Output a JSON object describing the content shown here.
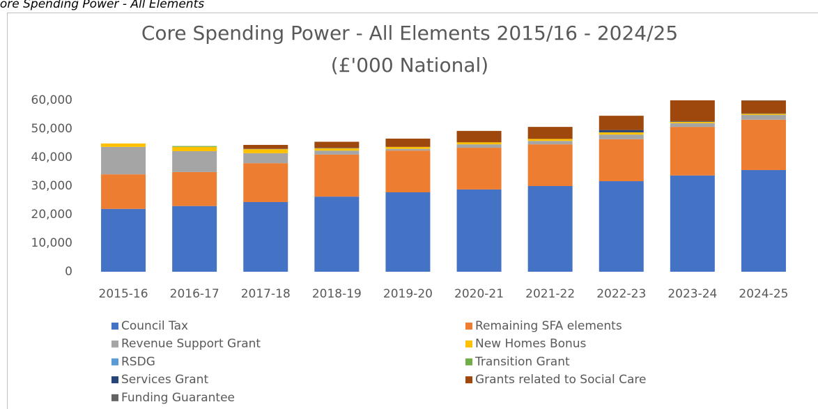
{
  "caption": "Core Spending Power - All Elements",
  "chart_data": {
    "type": "stacked_bar",
    "title": [
      "Core Spending Power - All Elements 2015/16 - 2024/25",
      "(£'000 National)"
    ],
    "categories": [
      "2015-16",
      "2016-17",
      "2017-18",
      "2018-19",
      "2019-20",
      "2020-21",
      "2021-22",
      "2022-23",
      "2023-24",
      "2024-25"
    ],
    "series": [
      {
        "name": "Council Tax",
        "color": "#4472c4",
        "values": [
          22000,
          23000,
          24400,
          26300,
          27800,
          28800,
          30000,
          31700,
          33700,
          35600
        ]
      },
      {
        "name": "Remaining SFA elements",
        "color": "#ed7d31",
        "values": [
          12100,
          11900,
          13600,
          14700,
          14600,
          14600,
          14600,
          14700,
          17000,
          17600
        ]
      },
      {
        "name": "Revenue Support Grant",
        "color": "#a5a5a5",
        "values": [
          9600,
          7300,
          3500,
          1400,
          600,
          1200,
          1200,
          1600,
          1300,
          1700
        ]
      },
      {
        "name": "New Homes Bonus",
        "color": "#ffc000",
        "values": [
          1200,
          1500,
          1400,
          800,
          700,
          700,
          700,
          800,
          500,
          400
        ]
      },
      {
        "name": "RSDG",
        "color": "#5b9bd5",
        "values": [
          0,
          0,
          100,
          100,
          0,
          0,
          0,
          0,
          0,
          0
        ]
      },
      {
        "name": "Transition Grant",
        "color": "#70ad47",
        "values": [
          0,
          300,
          0,
          0,
          0,
          0,
          0,
          0,
          0,
          0
        ]
      },
      {
        "name": "Services Grant",
        "color": "#264478",
        "values": [
          0,
          0,
          0,
          0,
          0,
          0,
          0,
          800,
          200,
          100
        ]
      },
      {
        "name": "Grants related to Social Care",
        "color": "#9e480e",
        "values": [
          0,
          0,
          1400,
          2200,
          2900,
          4000,
          4200,
          5000,
          7300,
          4500
        ]
      },
      {
        "name": "Funding Guarantee",
        "color": "#636363",
        "values": [
          0,
          0,
          0,
          0,
          0,
          0,
          0,
          0,
          0,
          100
        ]
      }
    ],
    "ylim": [
      0,
      60000
    ],
    "yticks": [
      0,
      {
        "value": 10000,
        "label": "10,000"
      },
      {
        "value": 20000,
        "label": "20,000"
      },
      {
        "value": 30000,
        "label": "30,000"
      },
      {
        "value": 40000,
        "label": "40,000"
      },
      {
        "value": 50000,
        "label": "50,000"
      },
      {
        "value": 60000,
        "label": "60,000"
      }
    ],
    "grid": false
  }
}
